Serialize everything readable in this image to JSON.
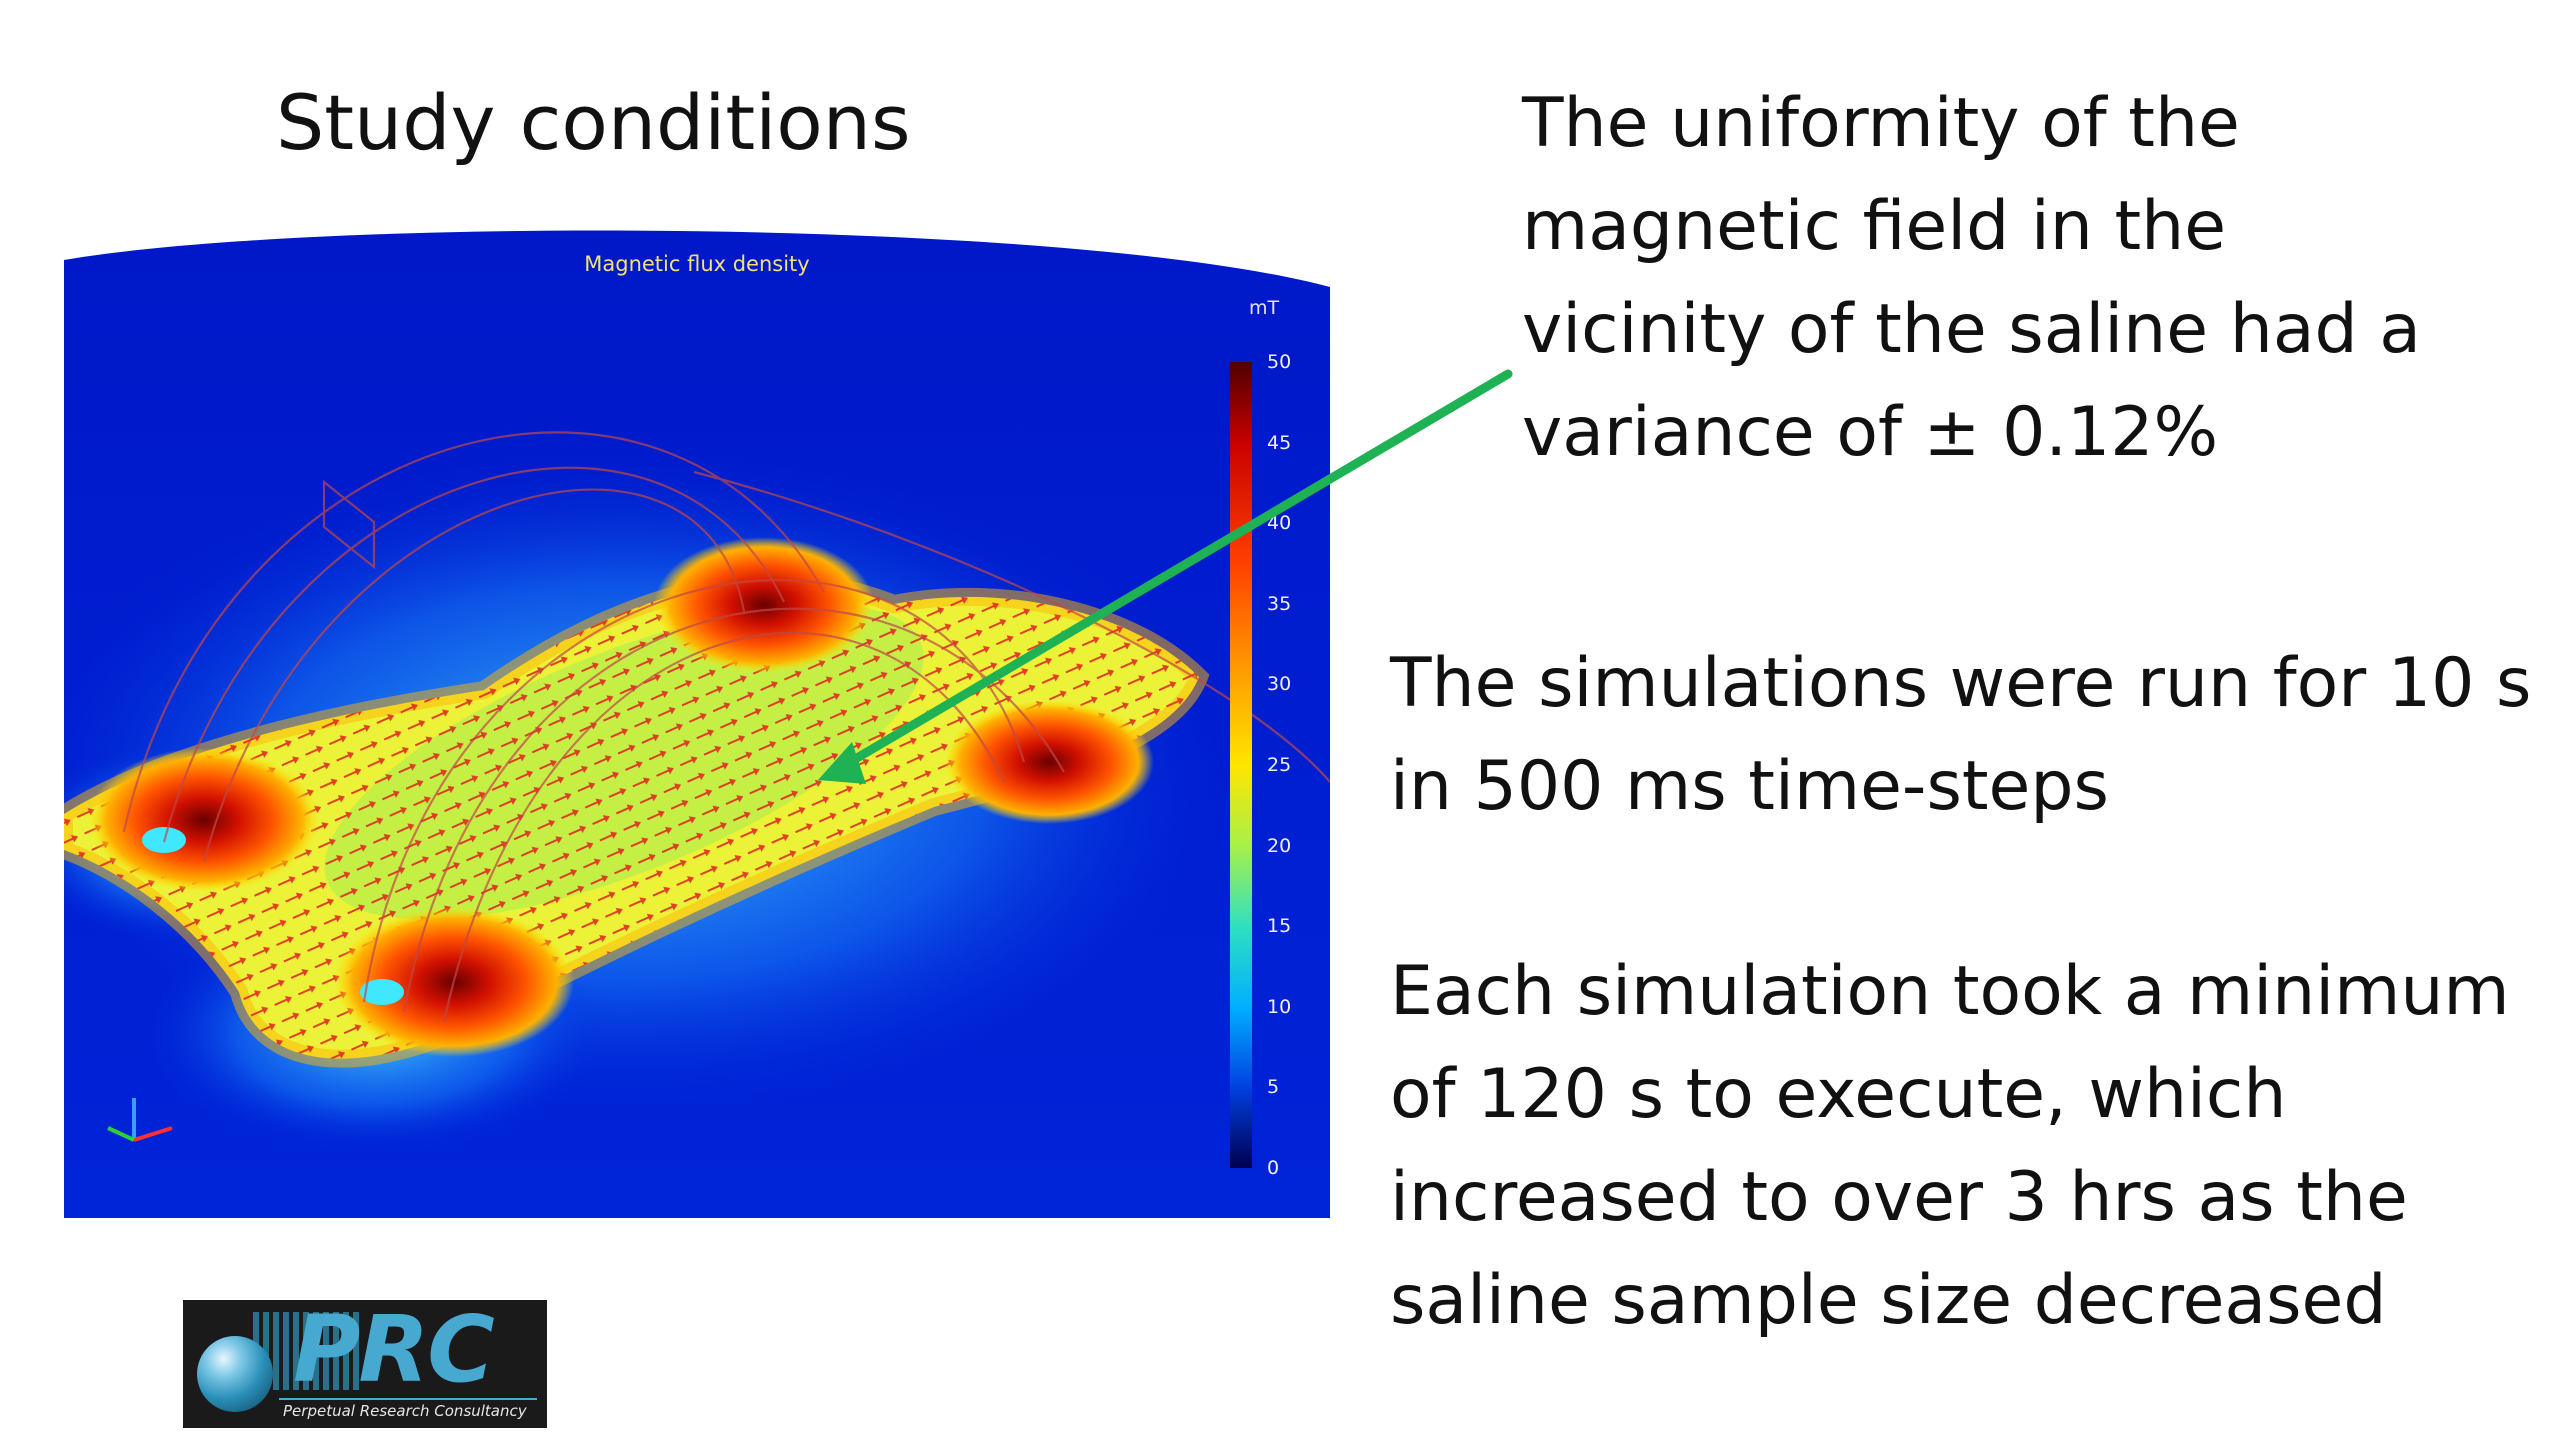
{
  "slide": {
    "title": "Study conditions",
    "uniformity_lines": [
      "The uniformity of the",
      "magnetic field in the",
      "vicinity of the saline had a",
      "variance of ± 0.12%"
    ],
    "simulation_lines": [
      "The simulations were run for 10 s",
      "in 500 ms time-steps"
    ],
    "execution_lines": [
      "Each simulation took a minimum",
      "of 120 s to execute, which",
      "increased to over 3 hrs as the",
      "saline sample size decreased"
    ]
  },
  "figure": {
    "caption": "Magnetic flux density",
    "unit": "mT",
    "colorbar_ticks": [
      "50",
      "45",
      "40",
      "35",
      "30",
      "25",
      "20",
      "15",
      "10",
      "5",
      "0"
    ],
    "colormap": [
      "#3b0000",
      "#b30000",
      "#ff2b00",
      "#ff8c00",
      "#ffe600",
      "#b8f040",
      "#40e0b0",
      "#00c8ff",
      "#0070ff",
      "#0018b0",
      "#000040"
    ],
    "arrow_color": "#1fb254"
  },
  "logo": {
    "letters": "PRC",
    "subtitle": "Perpetual Research Consultancy"
  }
}
